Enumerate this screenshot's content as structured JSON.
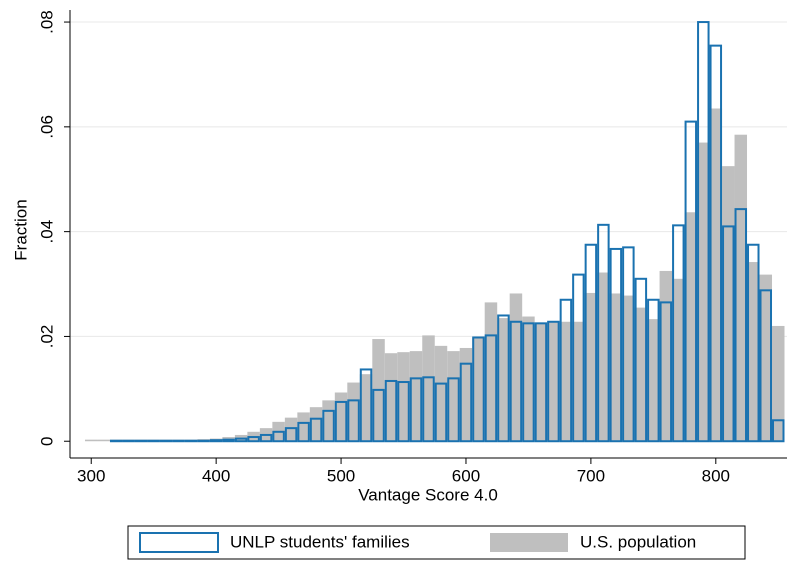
{
  "chart_data": {
    "type": "histogram",
    "x_label": "Vantage Score 4.0",
    "y_label": "Fraction",
    "bins": [
      295,
      305,
      315,
      325,
      335,
      345,
      355,
      365,
      375,
      385,
      395,
      405,
      415,
      425,
      435,
      445,
      455,
      465,
      475,
      485,
      495,
      505,
      515,
      525,
      535,
      545,
      555,
      565,
      575,
      585,
      595,
      605,
      615,
      625,
      635,
      645,
      655,
      665,
      675,
      685,
      695,
      705,
      715,
      725,
      735,
      745,
      755,
      765,
      775,
      785,
      795,
      805,
      815,
      825,
      835,
      845,
      855
    ],
    "series": [
      {
        "name": "U.S. population",
        "color": "#bfbfbf",
        "style": "filled",
        "values": [
          0.0003,
          0.0003,
          0.0003,
          0.0003,
          0.0003,
          0.0003,
          0.0003,
          0.0003,
          0.0003,
          0.0004,
          0.0005,
          0.0008,
          0.0012,
          0.0018,
          0.0025,
          0.0037,
          0.0045,
          0.0055,
          0.0065,
          0.0078,
          0.0093,
          0.0112,
          0.0128,
          0.0195,
          0.0168,
          0.017,
          0.0172,
          0.0202,
          0.0182,
          0.0172,
          0.0178,
          0.0198,
          0.0265,
          0.0235,
          0.0282,
          0.0238,
          0.0225,
          0.0228,
          0.0228,
          0.0228,
          0.0283,
          0.0322,
          0.0282,
          0.0278,
          0.0255,
          0.0233,
          0.0325,
          0.031,
          0.0437,
          0.057,
          0.0635,
          0.0525,
          0.0585,
          0.0342,
          0.0318,
          0.022
        ]
      },
      {
        "name": "UNLP students' families",
        "color": "#1a72b0",
        "style": "outline",
        "values": [
          0,
          0,
          0.0001,
          0.0001,
          0.0001,
          0.0001,
          0.0001,
          0.0001,
          0.0001,
          0.0001,
          0.0002,
          0.0003,
          0.0005,
          0.0008,
          0.0012,
          0.0018,
          0.0025,
          0.0035,
          0.0043,
          0.0058,
          0.0075,
          0.0078,
          0.0137,
          0.0098,
          0.0115,
          0.0113,
          0.012,
          0.0122,
          0.011,
          0.012,
          0.0148,
          0.0198,
          0.0202,
          0.024,
          0.0228,
          0.0225,
          0.0225,
          0.0228,
          0.027,
          0.0318,
          0.0375,
          0.0413,
          0.0367,
          0.037,
          0.031,
          0.027,
          0.0265,
          0.0412,
          0.061,
          0.08,
          0.0755,
          0.041,
          0.0443,
          0.0375,
          0.0288,
          0.004
        ]
      }
    ],
    "xlim": [
      283,
      857
    ],
    "xticks": [
      300,
      400,
      500,
      600,
      700,
      800
    ],
    "ylim": [
      -0.0032,
      0.0823
    ],
    "yticks": [
      0,
      {
        "value": 0.02,
        "label": ".02"
      },
      {
        "value": 0.04,
        "label": ".04"
      },
      {
        "value": 0.06,
        "label": ".06"
      },
      {
        "value": 0.08,
        "label": ".08"
      }
    ],
    "grid": true,
    "legend": "bottom"
  }
}
